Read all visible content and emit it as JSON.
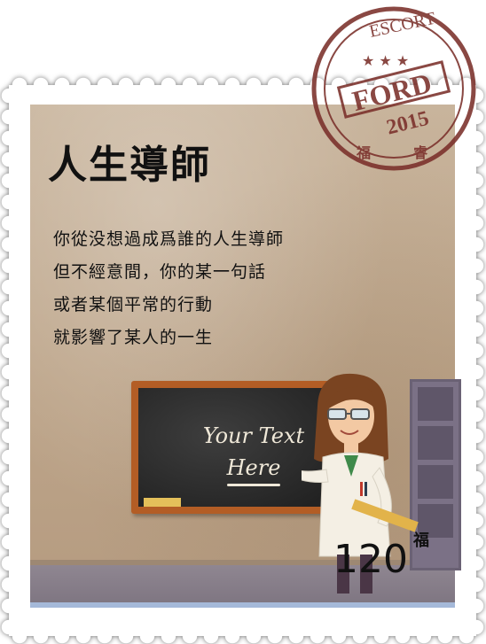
{
  "title": "人生導師",
  "body_lines": [
    "你從没想過成爲誰的人生導師",
    "但不經意間，你的某一句話",
    "或者某個平常的行動",
    "就影響了某人的一生"
  ],
  "blackboard": {
    "line1": "Your Text",
    "line2": "Here"
  },
  "count": {
    "value": "120",
    "unit": "福"
  },
  "postmark": {
    "top_text": "ESCORT",
    "brand": "FORD",
    "year": "2015",
    "left_char": "福",
    "right_char": "睿",
    "colors": {
      "ink": "#7a2f2a"
    }
  }
}
